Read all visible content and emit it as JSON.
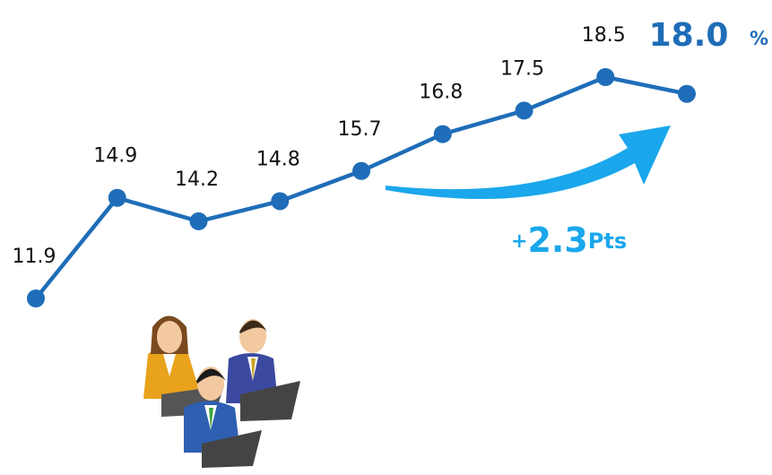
{
  "chart_data": {
    "type": "line",
    "categories": [
      null,
      null,
      null,
      null,
      null,
      null,
      null,
      null,
      null
    ],
    "values": [
      11.9,
      14.9,
      14.2,
      14.8,
      15.7,
      16.8,
      17.5,
      18.5,
      18.0
    ],
    "value_labels": [
      "11.9",
      "14.9",
      "14.2",
      "14.8",
      "15.7",
      "16.8",
      "17.5",
      "18.5",
      "18.0"
    ],
    "value_unit": "%",
    "color": "#1f6db8",
    "annotation_parts": [
      "+",
      "2.3",
      "Pts"
    ]
  }
}
